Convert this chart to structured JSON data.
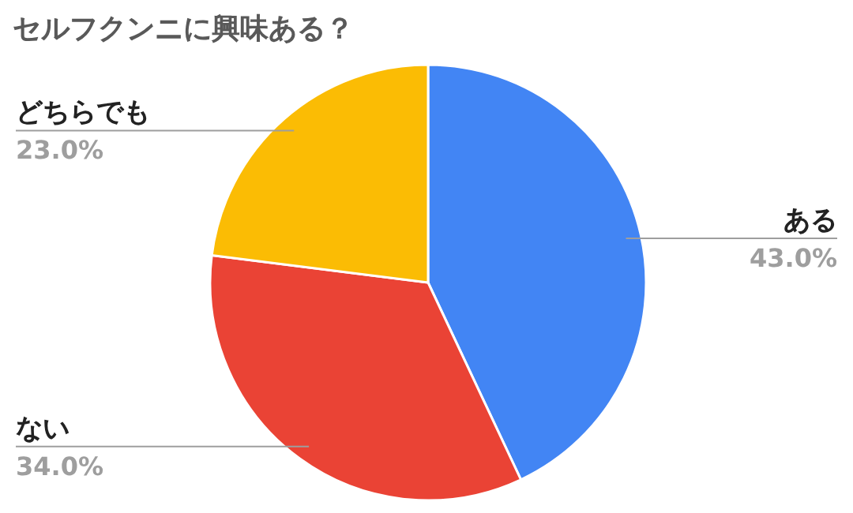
{
  "chart_data": {
    "type": "pie",
    "title": "セルフクンニに興味ある？",
    "categories": [
      "ある",
      "ない",
      "どちらでも"
    ],
    "values": [
      43,
      34,
      23
    ],
    "value_labels": [
      "43.0%",
      "34.0%",
      "23.0%"
    ],
    "colors": [
      "#4285f4",
      "#ea4335",
      "#fbbc04"
    ]
  }
}
